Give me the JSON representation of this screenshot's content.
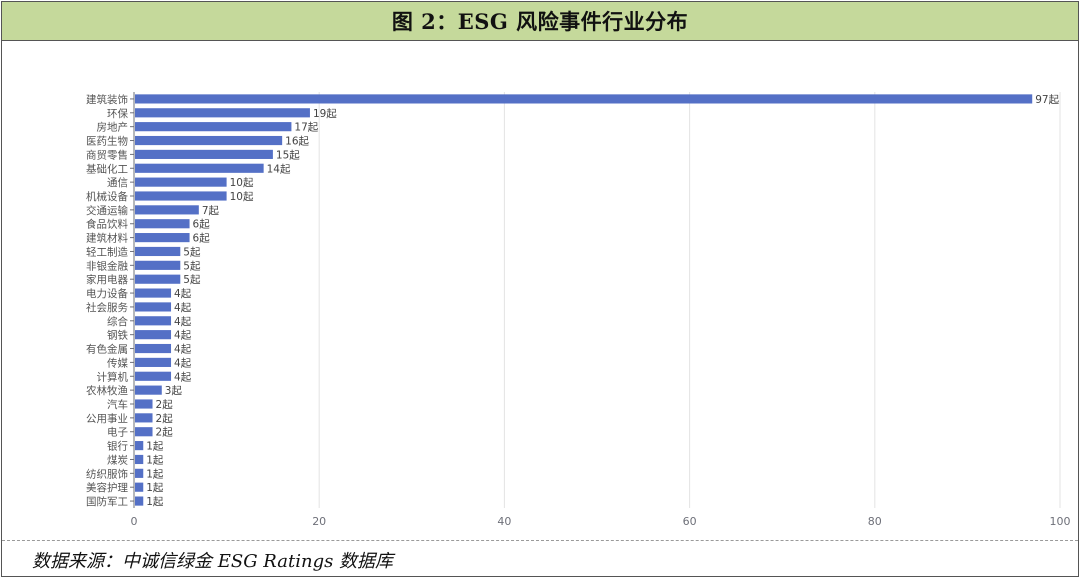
{
  "title": "图 2：ESG 风险事件行业分布",
  "source": "数据来源：中诚信绿金 ESG Ratings 数据库",
  "value_suffix": "起",
  "colors": {
    "bar": "#5470c6",
    "title_bg": "#c5d99b",
    "grid": "#e3e3e3",
    "axis": "#6e7079",
    "label": "#555555"
  },
  "chart_data": {
    "type": "bar",
    "orientation": "horizontal",
    "categories": [
      "建筑装饰",
      "环保",
      "房地产",
      "医药生物",
      "商贸零售",
      "基础化工",
      "通信",
      "机械设备",
      "交通运输",
      "食品饮料",
      "建筑材料",
      "轻工制造",
      "非银金融",
      "家用电器",
      "电力设备",
      "社会服务",
      "综合",
      "钢铁",
      "有色金属",
      "传媒",
      "计算机",
      "农林牧渔",
      "汽车",
      "公用事业",
      "电子",
      "银行",
      "煤炭",
      "纺织服饰",
      "美容护理",
      "国防军工"
    ],
    "values": [
      97,
      19,
      17,
      16,
      15,
      14,
      10,
      10,
      7,
      6,
      6,
      5,
      5,
      5,
      4,
      4,
      4,
      4,
      4,
      4,
      4,
      3,
      2,
      2,
      2,
      1,
      1,
      1,
      1,
      1
    ],
    "xlim": [
      0,
      100
    ],
    "xticks": [
      0,
      20,
      40,
      60,
      80,
      100
    ],
    "grid": true,
    "data_labels": true
  }
}
